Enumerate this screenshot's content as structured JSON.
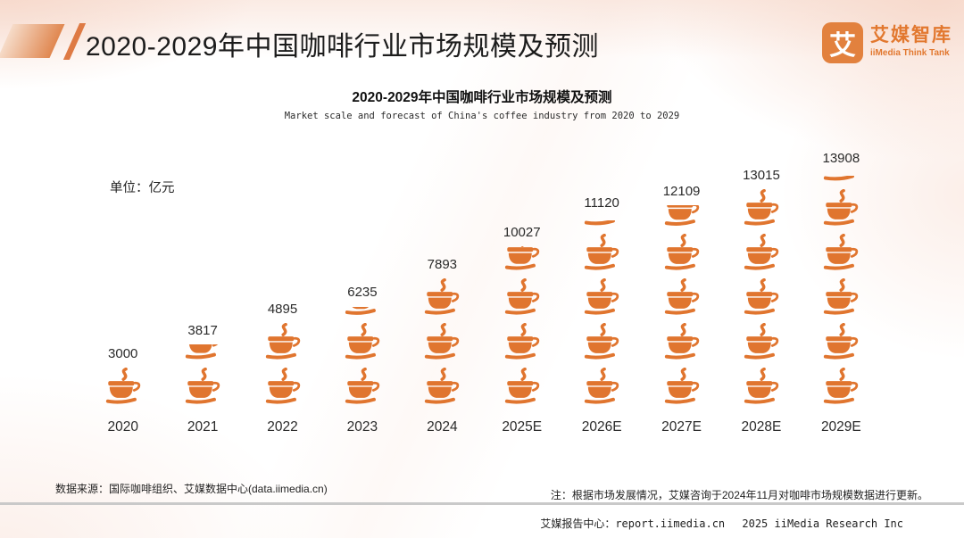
{
  "header": {
    "title": "2020-2029年中国咖啡行业市场规模及预测",
    "logo": {
      "glyph": "艾",
      "name_cn": "艾媒智库",
      "name_en": "iiMedia Think Tank"
    }
  },
  "chart_data": {
    "type": "bar",
    "pictogram": "coffee-cup",
    "title": "2020-2029年中国咖啡行业市场规模及预测",
    "subtitle": "Market scale and forecast of China's coffee industry from 2020 to 2029",
    "unit_label": "单位：亿元",
    "categories": [
      "2020",
      "2021",
      "2022",
      "2023",
      "2024",
      "2025E",
      "2026E",
      "2027E",
      "2028E",
      "2029E"
    ],
    "values": [
      3000,
      3817,
      4895,
      6235,
      7893,
      10027,
      11120,
      12109,
      13015,
      13908
    ],
    "icon_full_counts": [
      1,
      1,
      2,
      2,
      3,
      3,
      4,
      4,
      5,
      5
    ],
    "icon_partial_fractions": [
      0,
      0.45,
      0,
      0.28,
      0,
      0.68,
      0.2,
      0.6,
      0,
      0.2
    ],
    "accent_color": "#E0752F",
    "legend_position": "none",
    "grid": false
  },
  "footnotes": {
    "source": "数据来源：国际咖啡组织、艾媒数据中心(data.iimedia.cn)",
    "note": "注：根据市场发展情况，艾媒咨询于2024年11月对咖啡市场规模数据进行更新。"
  },
  "footer": {
    "text": "艾媒报告中心：report.iimedia.cn　 2025 iiMedia Research Inc"
  }
}
